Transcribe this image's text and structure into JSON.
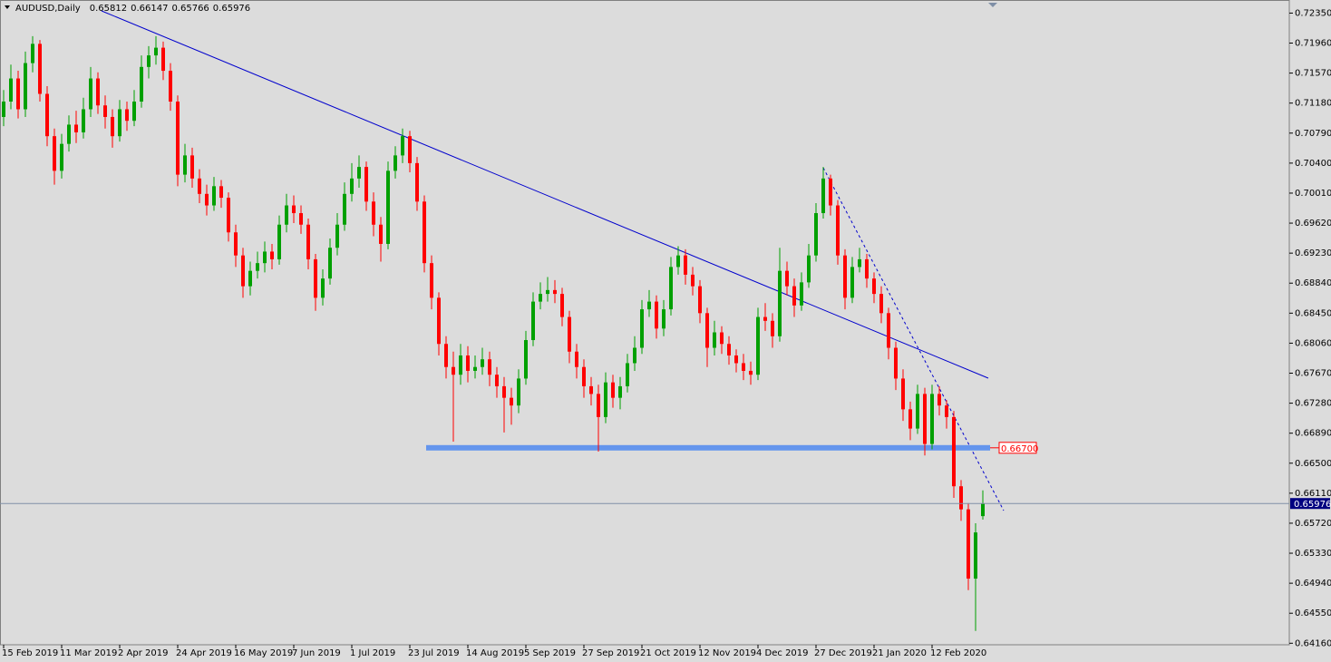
{
  "chart_data": {
    "type": "candlestick",
    "symbol": "AUDUSD,Daily",
    "up_color": "#00a000",
    "down_color": "#ff0000",
    "level_color": "#6495ed",
    "ylim": [
      0.6414,
      0.7252
    ],
    "yticks": [
      {
        "value": 0.7235,
        "label": "0.72350"
      },
      {
        "value": 0.7196,
        "label": "0.71960"
      },
      {
        "value": 0.7157,
        "label": "0.71570"
      },
      {
        "value": 0.7118,
        "label": "0.71180"
      },
      {
        "value": 0.7079,
        "label": "0.70790"
      },
      {
        "value": 0.704,
        "label": "0.70400"
      },
      {
        "value": 0.7001,
        "label": "0.70010"
      },
      {
        "value": 0.6962,
        "label": "0.69620"
      },
      {
        "value": 0.6923,
        "label": "0.69230"
      },
      {
        "value": 0.6884,
        "label": "0.68840"
      },
      {
        "value": 0.6845,
        "label": "0.68450"
      },
      {
        "value": 0.6806,
        "label": "0.68060"
      },
      {
        "value": 0.6767,
        "label": "0.67670"
      },
      {
        "value": 0.6728,
        "label": "0.67280"
      },
      {
        "value": 0.6689,
        "label": "0.66890"
      },
      {
        "value": 0.665,
        "label": "0.66500"
      },
      {
        "value": 0.6611,
        "label": "0.66110"
      },
      {
        "value": 0.6572,
        "label": "0.65720"
      },
      {
        "value": 0.6533,
        "label": "0.65330"
      },
      {
        "value": 0.6494,
        "label": "0.64940"
      },
      {
        "value": 0.6455,
        "label": "0.64550"
      },
      {
        "value": 0.6416,
        "label": "0.64160"
      }
    ],
    "xticks": [
      {
        "value": 0,
        "label": "15 Feb 2019"
      },
      {
        "value": 8,
        "label": "11 Mar 2019"
      },
      {
        "value": 16,
        "label": "2 Apr 2019"
      },
      {
        "value": 24,
        "label": "24 Apr 2019"
      },
      {
        "value": 32,
        "label": "16 May 2019"
      },
      {
        "value": 40,
        "label": "7 Jun 2019"
      },
      {
        "value": 48,
        "label": "1 Jul 2019"
      },
      {
        "value": 56,
        "label": "23 Jul 2019"
      },
      {
        "value": 64,
        "label": "14 Aug 2019"
      },
      {
        "value": 72,
        "label": "5 Sep 2019"
      },
      {
        "value": 80,
        "label": "27 Sep 2019"
      },
      {
        "value": 88,
        "label": "21 Oct 2019"
      },
      {
        "value": 96,
        "label": "12 Nov 2019"
      },
      {
        "value": 104,
        "label": "4 Dec 2019"
      },
      {
        "value": 112,
        "label": "27 Dec 2019"
      },
      {
        "value": 120,
        "label": "21 Jan 2020"
      },
      {
        "value": 128,
        "label": "12 Feb 2020"
      }
    ],
    "level": {
      "value": 0.667,
      "label": "0.66700"
    },
    "candles": [
      [
        0.71,
        0.7135,
        0.7088,
        0.712
      ],
      [
        0.712,
        0.7168,
        0.711,
        0.715
      ],
      [
        0.715,
        0.716,
        0.7098,
        0.711
      ],
      [
        0.711,
        0.7185,
        0.71,
        0.717
      ],
      [
        0.717,
        0.7205,
        0.7158,
        0.7195
      ],
      [
        0.7195,
        0.72,
        0.712,
        0.713
      ],
      [
        0.713,
        0.714,
        0.7062,
        0.7075
      ],
      [
        0.7075,
        0.7085,
        0.7012,
        0.703
      ],
      [
        0.703,
        0.7078,
        0.702,
        0.7065
      ],
      [
        0.7065,
        0.7102,
        0.7055,
        0.709
      ],
      [
        0.709,
        0.7108,
        0.7066,
        0.708
      ],
      [
        0.708,
        0.7125,
        0.7072,
        0.711
      ],
      [
        0.711,
        0.7165,
        0.71,
        0.715
      ],
      [
        0.715,
        0.7158,
        0.7104,
        0.7115
      ],
      [
        0.7115,
        0.7128,
        0.7085,
        0.71
      ],
      [
        0.71,
        0.711,
        0.706,
        0.7075
      ],
      [
        0.7075,
        0.7122,
        0.7068,
        0.711
      ],
      [
        0.711,
        0.712,
        0.7082,
        0.7095
      ],
      [
        0.7095,
        0.7135,
        0.7088,
        0.712
      ],
      [
        0.712,
        0.718,
        0.7112,
        0.7165
      ],
      [
        0.7165,
        0.7192,
        0.715,
        0.718
      ],
      [
        0.718,
        0.7205,
        0.7168,
        0.719
      ],
      [
        0.719,
        0.7198,
        0.7148,
        0.716
      ],
      [
        0.716,
        0.717,
        0.7108,
        0.712
      ],
      [
        0.712,
        0.7128,
        0.701,
        0.7025
      ],
      [
        0.7025,
        0.7065,
        0.7015,
        0.705
      ],
      [
        0.705,
        0.706,
        0.7008,
        0.702
      ],
      [
        0.702,
        0.7032,
        0.6988,
        0.7
      ],
      [
        0.7,
        0.7012,
        0.6972,
        0.6985
      ],
      [
        0.6985,
        0.7022,
        0.6978,
        0.701
      ],
      [
        0.701,
        0.7018,
        0.6982,
        0.6995
      ],
      [
        0.6995,
        0.7002,
        0.6938,
        0.695
      ],
      [
        0.695,
        0.696,
        0.6905,
        0.692
      ],
      [
        0.692,
        0.693,
        0.6865,
        0.688
      ],
      [
        0.688,
        0.6912,
        0.6868,
        0.69
      ],
      [
        0.69,
        0.6925,
        0.689,
        0.691
      ],
      [
        0.691,
        0.6938,
        0.6898,
        0.6925
      ],
      [
        0.6925,
        0.6935,
        0.6902,
        0.6915
      ],
      [
        0.6915,
        0.6972,
        0.6908,
        0.696
      ],
      [
        0.696,
        0.7,
        0.695,
        0.6985
      ],
      [
        0.6985,
        0.6998,
        0.6962,
        0.6975
      ],
      [
        0.6975,
        0.6985,
        0.6948,
        0.696
      ],
      [
        0.696,
        0.6968,
        0.6902,
        0.6915
      ],
      [
        0.6915,
        0.6922,
        0.6848,
        0.6865
      ],
      [
        0.6865,
        0.6902,
        0.6855,
        0.689
      ],
      [
        0.689,
        0.6942,
        0.6882,
        0.693
      ],
      [
        0.693,
        0.6975,
        0.692,
        0.696
      ],
      [
        0.696,
        0.7015,
        0.6952,
        0.7
      ],
      [
        0.7,
        0.704,
        0.699,
        0.702
      ],
      [
        0.702,
        0.705,
        0.7008,
        0.7035
      ],
      [
        0.7035,
        0.7042,
        0.6978,
        0.699
      ],
      [
        0.699,
        0.7002,
        0.6945,
        0.696
      ],
      [
        0.696,
        0.697,
        0.6912,
        0.6935
      ],
      [
        0.6935,
        0.7042,
        0.6928,
        0.703
      ],
      [
        0.703,
        0.7062,
        0.702,
        0.705
      ],
      [
        0.705,
        0.7085,
        0.704,
        0.7075
      ],
      [
        0.7075,
        0.7082,
        0.7028,
        0.704
      ],
      [
        0.704,
        0.7048,
        0.6978,
        0.699
      ],
      [
        0.699,
        0.6998,
        0.6898,
        0.691
      ],
      [
        0.691,
        0.692,
        0.685,
        0.6865
      ],
      [
        0.6865,
        0.6872,
        0.679,
        0.6805
      ],
      [
        0.6805,
        0.6815,
        0.676,
        0.6775
      ],
      [
        0.6775,
        0.6795,
        0.6678,
        0.6765
      ],
      [
        0.6765,
        0.6805,
        0.6752,
        0.679
      ],
      [
        0.679,
        0.6802,
        0.6755,
        0.677
      ],
      [
        0.677,
        0.679,
        0.676,
        0.6775
      ],
      [
        0.6775,
        0.68,
        0.6765,
        0.6785
      ],
      [
        0.6785,
        0.6795,
        0.675,
        0.6765
      ],
      [
        0.6765,
        0.6775,
        0.6735,
        0.675
      ],
      [
        0.675,
        0.6762,
        0.669,
        0.6735
      ],
      [
        0.6735,
        0.6748,
        0.67,
        0.6725
      ],
      [
        0.6725,
        0.6772,
        0.6715,
        0.676
      ],
      [
        0.676,
        0.6822,
        0.6752,
        0.681
      ],
      [
        0.681,
        0.6872,
        0.6802,
        0.686
      ],
      [
        0.686,
        0.6885,
        0.685,
        0.687
      ],
      [
        0.687,
        0.6892,
        0.686,
        0.6875
      ],
      [
        0.6875,
        0.6888,
        0.6858,
        0.687
      ],
      [
        0.687,
        0.6878,
        0.6828,
        0.684
      ],
      [
        0.684,
        0.6848,
        0.678,
        0.6795
      ],
      [
        0.6795,
        0.6805,
        0.676,
        0.6775
      ],
      [
        0.6775,
        0.6785,
        0.6735,
        0.675
      ],
      [
        0.675,
        0.6762,
        0.6725,
        0.674
      ],
      [
        0.674,
        0.6752,
        0.6665,
        0.671
      ],
      [
        0.671,
        0.6768,
        0.6702,
        0.6755
      ],
      [
        0.6755,
        0.6765,
        0.6722,
        0.6735
      ],
      [
        0.6735,
        0.6762,
        0.672,
        0.675
      ],
      [
        0.675,
        0.6792,
        0.6742,
        0.678
      ],
      [
        0.678,
        0.6815,
        0.677,
        0.68
      ],
      [
        0.68,
        0.6862,
        0.6792,
        0.685
      ],
      [
        0.685,
        0.6875,
        0.684,
        0.686
      ],
      [
        0.686,
        0.6868,
        0.6812,
        0.6825
      ],
      [
        0.6825,
        0.6862,
        0.6815,
        0.685
      ],
      [
        0.685,
        0.6918,
        0.6842,
        0.6905
      ],
      [
        0.6905,
        0.6932,
        0.6895,
        0.692
      ],
      [
        0.692,
        0.6928,
        0.6882,
        0.6895
      ],
      [
        0.6895,
        0.6905,
        0.6868,
        0.688
      ],
      [
        0.688,
        0.6888,
        0.6832,
        0.6845
      ],
      [
        0.6845,
        0.6852,
        0.6775,
        0.68
      ],
      [
        0.68,
        0.6835,
        0.679,
        0.682
      ],
      [
        0.682,
        0.6828,
        0.6792,
        0.6805
      ],
      [
        0.6805,
        0.6815,
        0.6778,
        0.679
      ],
      [
        0.679,
        0.6798,
        0.6768,
        0.678
      ],
      [
        0.678,
        0.6792,
        0.6758,
        0.677
      ],
      [
        0.677,
        0.6782,
        0.6752,
        0.6765
      ],
      [
        0.6765,
        0.6852,
        0.6758,
        0.684
      ],
      [
        0.684,
        0.6858,
        0.6822,
        0.6835
      ],
      [
        0.6835,
        0.6845,
        0.68,
        0.6815
      ],
      [
        0.6815,
        0.693,
        0.6808,
        0.69
      ],
      [
        0.69,
        0.6912,
        0.6868,
        0.688
      ],
      [
        0.688,
        0.689,
        0.684,
        0.6855
      ],
      [
        0.6855,
        0.6898,
        0.6848,
        0.6885
      ],
      [
        0.6885,
        0.6935,
        0.6878,
        0.692
      ],
      [
        0.692,
        0.6988,
        0.6912,
        0.6975
      ],
      [
        0.6975,
        0.7035,
        0.6968,
        0.702
      ],
      [
        0.702,
        0.7025,
        0.6972,
        0.6985
      ],
      [
        0.6985,
        0.6992,
        0.6908,
        0.692
      ],
      [
        0.692,
        0.6928,
        0.685,
        0.6865
      ],
      [
        0.6865,
        0.6918,
        0.6858,
        0.6905
      ],
      [
        0.6905,
        0.693,
        0.6898,
        0.6915
      ],
      [
        0.6915,
        0.6922,
        0.6878,
        0.689
      ],
      [
        0.689,
        0.6898,
        0.6858,
        0.687
      ],
      [
        0.687,
        0.688,
        0.6832,
        0.6845
      ],
      [
        0.6845,
        0.6852,
        0.6785,
        0.68
      ],
      [
        0.68,
        0.6808,
        0.6745,
        0.676
      ],
      [
        0.676,
        0.6772,
        0.6705,
        0.672
      ],
      [
        0.672,
        0.673,
        0.668,
        0.6695
      ],
      [
        0.6695,
        0.6752,
        0.6688,
        0.674
      ],
      [
        0.674,
        0.6748,
        0.666,
        0.6675
      ],
      [
        0.6675,
        0.6752,
        0.6668,
        0.674
      ],
      [
        0.674,
        0.675,
        0.6712,
        0.6725
      ],
      [
        0.6725,
        0.6732,
        0.6695,
        0.671
      ],
      [
        0.671,
        0.6718,
        0.6605,
        0.662
      ],
      [
        0.662,
        0.6628,
        0.6575,
        0.659
      ],
      [
        0.659,
        0.6598,
        0.6485,
        0.65
      ],
      [
        0.65,
        0.6572,
        0.6432,
        0.656
      ],
      [
        0.65812,
        0.66147,
        0.65766,
        0.65976
      ]
    ]
  }
}
